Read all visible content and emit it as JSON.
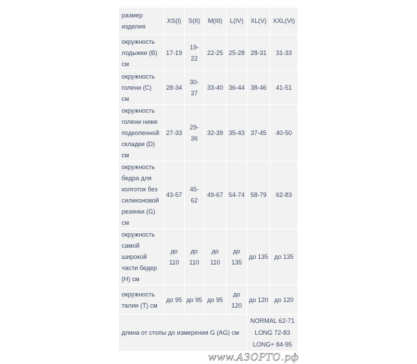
{
  "table": {
    "header": {
      "label": "размер изделия",
      "sizes": [
        "XS(I)",
        "S(II)",
        "M(III)",
        "L(IV)",
        "XL(V)",
        "XXL(VI)"
      ]
    },
    "rows": [
      {
        "label": "окружность лодыжки (B) см",
        "values": [
          "17-19",
          "19-22",
          "22-25",
          "25-28",
          "28-31",
          "31-33"
        ]
      },
      {
        "label": "окружность голени (C) см",
        "values": [
          "28-34",
          "30-37",
          "33-40",
          "36-44",
          "38-46",
          "41-51"
        ]
      },
      {
        "label": "окружность голени ниже подколенной складки (D) см",
        "values": [
          "27-33",
          "29-36",
          "32-39",
          "35-43",
          "37-45",
          "40-50"
        ]
      },
      {
        "label": "окружность бедра для колготок без силиконовой резинки (G) см",
        "values": [
          "43-57",
          "45-62",
          "49-67",
          "54-74",
          "58-79",
          "62-83"
        ]
      },
      {
        "label": "окружность самой широкой части бедер (H) см",
        "values": [
          "до 110",
          "до 110",
          "до 110",
          "до 135",
          "до 135",
          "до 135"
        ]
      },
      {
        "label": "окружность талии (T) см",
        "values": [
          "до 95",
          "до 95",
          "до 95",
          "до 120",
          "до 120",
          "до 120"
        ]
      }
    ],
    "length_row": {
      "label": "длина от стопы до измерения G (AG) см",
      "options": [
        "NORMAL 62-71",
        "LONG 72-83",
        "LONG+ 84-95"
      ]
    }
  },
  "watermark": "www.АЗОРТО.рф",
  "colors": {
    "cell_bg": "#f2f2f2",
    "text": "#3c4a66"
  }
}
